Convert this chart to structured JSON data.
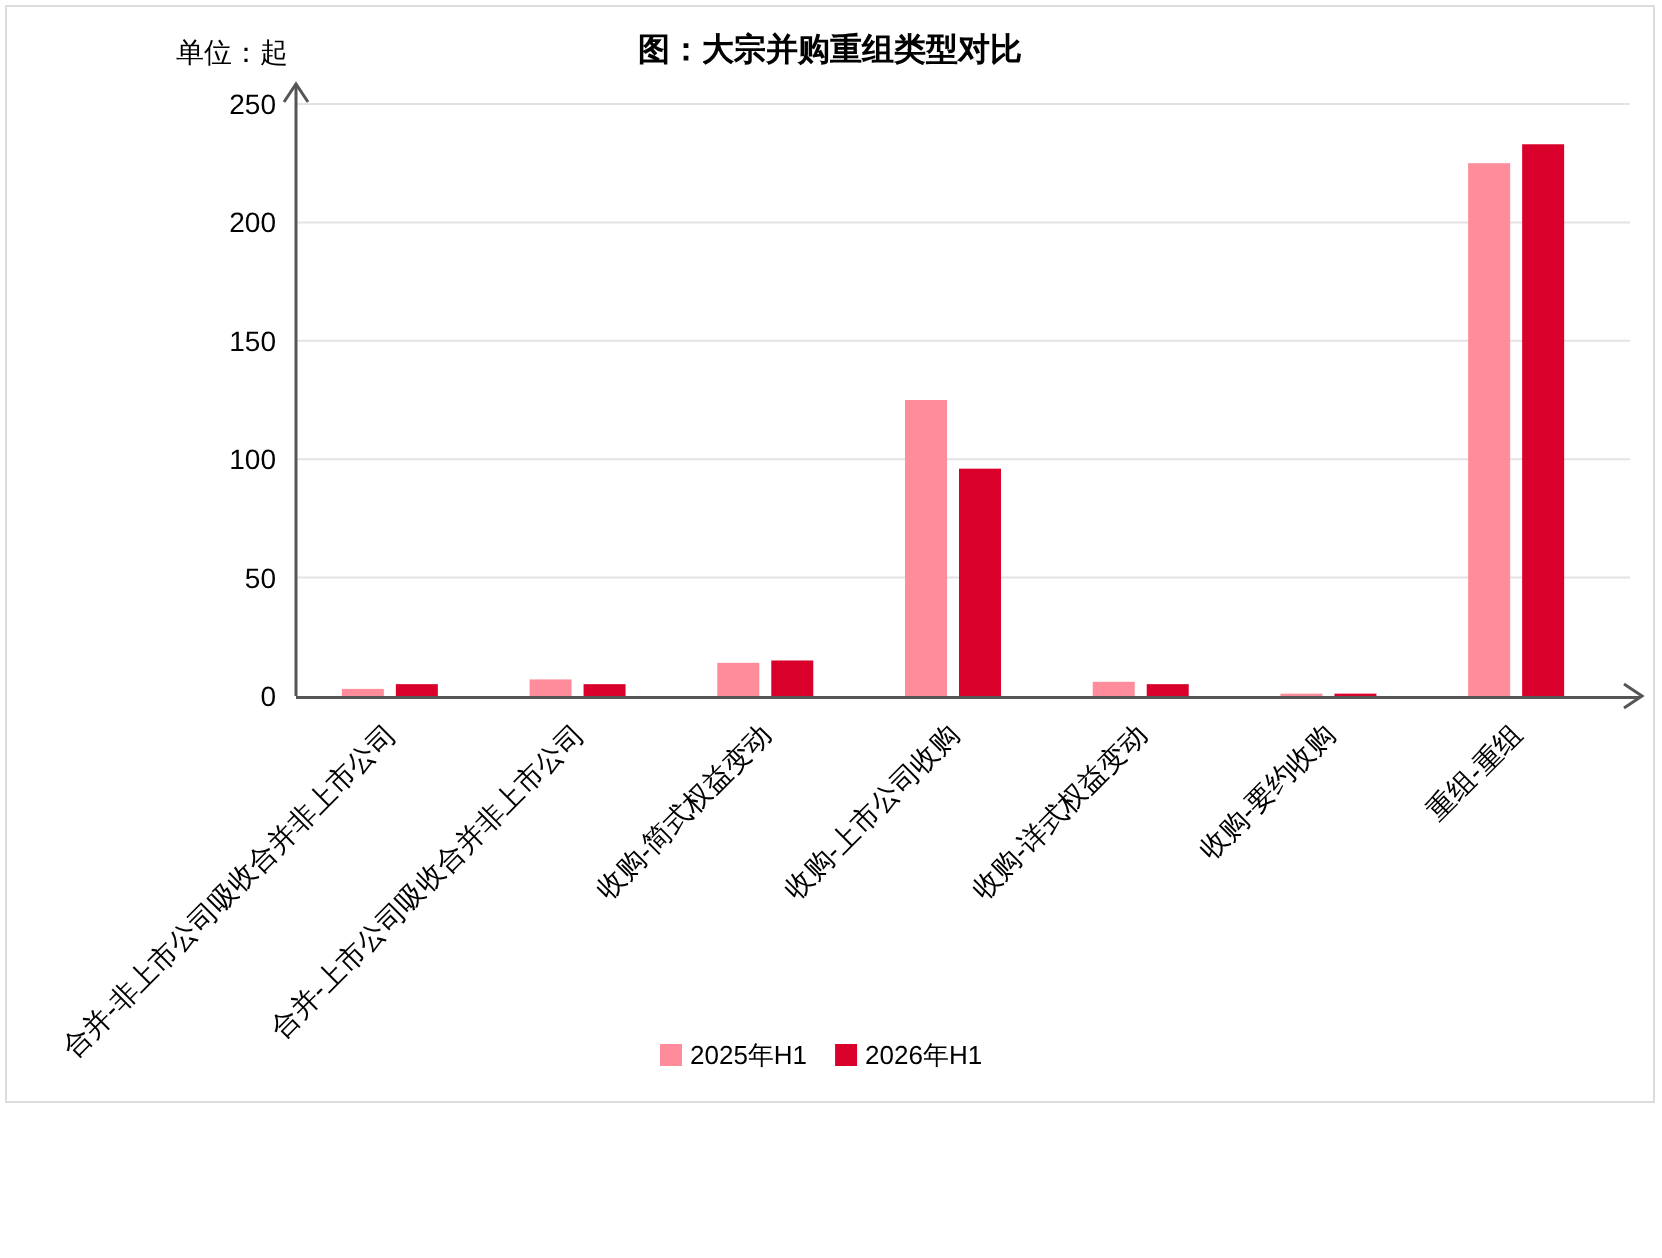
{
  "chart_data": {
    "type": "bar",
    "title": "图：大宗并购重组类型对比",
    "annotations": [
      "单位：起"
    ],
    "categories": [
      "合并-非上市公司吸收合并非上市公司",
      "合并-上市公司吸收合并非上市公司",
      "收购-简式权益变动",
      "收购-上市公司收购",
      "收购-详式权益变动",
      "收购-要约收购",
      "重组-重组"
    ],
    "series": [
      {
        "name": "2025年H1",
        "color": "#ff8c9a",
        "values": [
          3,
          7,
          14,
          125,
          6,
          1,
          225
        ]
      },
      {
        "name": "2026年H1",
        "color": "#d9002b",
        "values": [
          5,
          5,
          15,
          96,
          5,
          1,
          233
        ]
      }
    ],
    "ylim": [
      0,
      250
    ],
    "yticks": [
      0,
      50,
      100,
      150,
      200,
      250
    ],
    "grid": "y",
    "legend": "bottom"
  }
}
